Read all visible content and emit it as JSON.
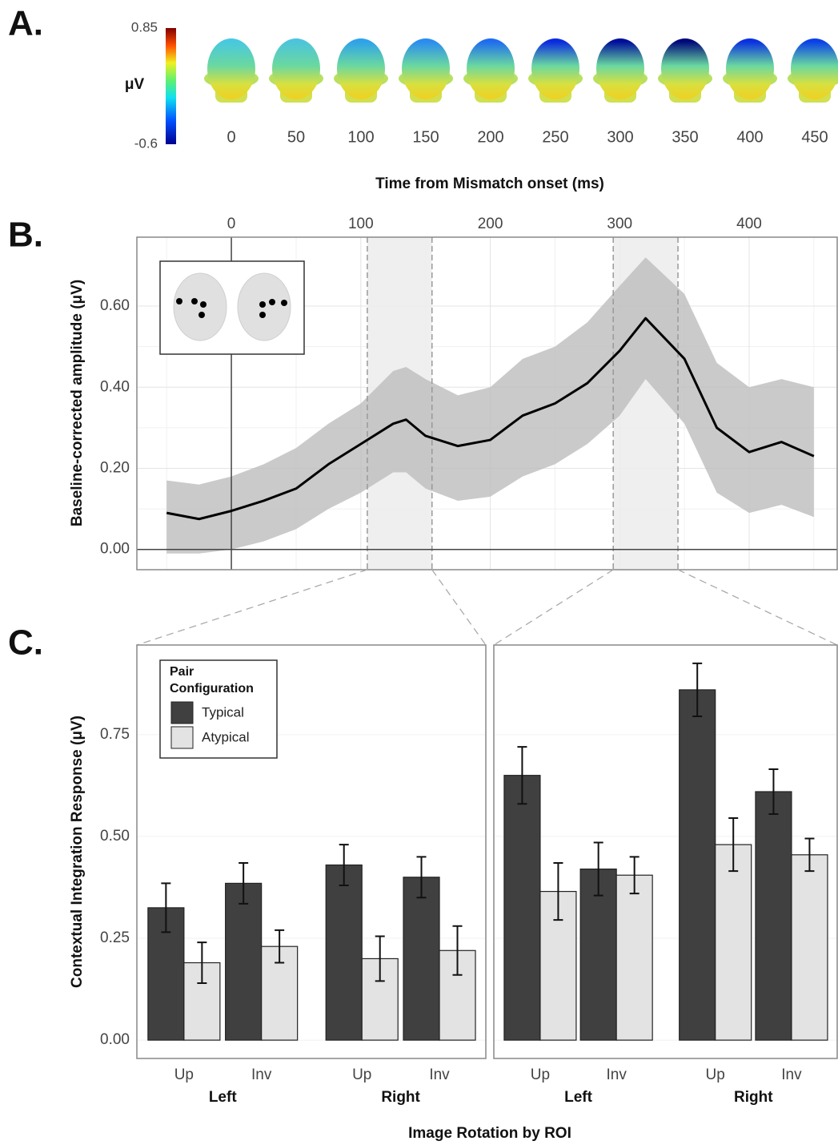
{
  "chart_data": [
    {
      "type": "topomap",
      "panel": "A.",
      "colorbar_label": "μV",
      "clim": [
        -0.6,
        0.85
      ],
      "cticks": [
        0.85,
        -0.6
      ],
      "x": [
        0,
        50,
        100,
        150,
        200,
        250,
        300,
        350,
        400,
        450
      ],
      "colors": [
        "#48c8e0",
        "#4cc4dc",
        "#2ea2ea",
        "#2a8cf0",
        "#1e6cf0",
        "#0a2ae0",
        "#000e9a",
        "#00087a",
        "#0a30e0",
        "#0a40e8"
      ],
      "xlabel": "Time from Mismatch onset (ms)"
    },
    {
      "type": "line",
      "panel": "B.",
      "ylabel": "Baseline-corrected amplitude (μV)",
      "x": [
        -50,
        -25,
        0,
        25,
        50,
        75,
        100,
        125,
        135,
        150,
        175,
        200,
        225,
        250,
        275,
        300,
        320,
        350,
        375,
        400,
        425,
        450
      ],
      "values": [
        0.09,
        0.075,
        0.095,
        0.12,
        0.15,
        0.21,
        0.26,
        0.31,
        0.32,
        0.28,
        0.255,
        0.27,
        0.33,
        0.36,
        0.41,
        0.49,
        0.57,
        0.47,
        0.3,
        0.24,
        0.265,
        0.23
      ],
      "lower": [
        -0.01,
        -0.01,
        0.0,
        0.02,
        0.05,
        0.1,
        0.14,
        0.19,
        0.19,
        0.15,
        0.12,
        0.13,
        0.18,
        0.21,
        0.26,
        0.33,
        0.42,
        0.31,
        0.14,
        0.09,
        0.11,
        0.08
      ],
      "upper": [
        0.17,
        0.16,
        0.18,
        0.21,
        0.25,
        0.31,
        0.36,
        0.44,
        0.45,
        0.42,
        0.38,
        0.4,
        0.47,
        0.5,
        0.56,
        0.65,
        0.72,
        0.63,
        0.46,
        0.4,
        0.42,
        0.4
      ],
      "color": "#000000",
      "band_color": "#bdbdbd",
      "xlim": [
        -73,
        468
      ],
      "ylim": [
        -0.05,
        0.77
      ],
      "xticks": [
        0,
        100,
        200,
        300,
        400
      ],
      "yticks": [
        {
          "value": 0,
          "label": "0.00"
        },
        {
          "value": 0.2,
          "label": "0.20"
        },
        {
          "value": 0.4,
          "label": "0.40"
        },
        {
          "value": 0.6,
          "label": "0.60"
        }
      ],
      "highlights": [
        [
          105,
          155
        ],
        [
          295,
          345
        ]
      ],
      "grid": true
    },
    {
      "type": "bar",
      "panel": "C.",
      "ylabel": "Contextual Integration Response (μV)",
      "xlabel": "Image Rotation by ROI",
      "categories": [
        "Up",
        "Inv",
        "Up",
        "Inv"
      ],
      "groups": [
        "Left",
        "Right"
      ],
      "series": [
        {
          "name": "Typical",
          "color": "#404040",
          "values": [
            0.325,
            0.385,
            0.43,
            0.4
          ],
          "errors": [
            0.06,
            0.05,
            0.05,
            0.05
          ]
        },
        {
          "name": "Atypical",
          "color": "#e3e3e3",
          "values": [
            0.19,
            0.23,
            0.2,
            0.22
          ],
          "errors": [
            0.05,
            0.04,
            0.055,
            0.06
          ]
        }
      ],
      "ylim": [
        -0.045,
        0.97
      ],
      "yticks": [
        {
          "value": 0,
          "label": "0.00"
        },
        {
          "value": 0.25,
          "label": "0.25"
        },
        {
          "value": 0.5,
          "label": "0.50"
        },
        {
          "value": 0.75,
          "label": "0.75"
        }
      ],
      "legend": "top-left",
      "legend_title": "Pair Configuration",
      "grid": true
    },
    {
      "type": "bar",
      "categories": [
        "Up",
        "Inv",
        "Up",
        "Inv"
      ],
      "groups": [
        "Left",
        "Right"
      ],
      "series": [
        {
          "color": "#404040",
          "values": [
            0.65,
            0.42,
            0.86,
            0.61
          ],
          "errors": [
            0.07,
            0.065,
            0.065,
            0.055
          ]
        },
        {
          "color": "#e3e3e3",
          "values": [
            0.365,
            0.405,
            0.48,
            0.455
          ],
          "errors": [
            0.07,
            0.045,
            0.065,
            0.04
          ]
        }
      ],
      "ylim": [
        -0.045,
        0.97
      ],
      "yticks": [
        0,
        0.25,
        0.5,
        0.75
      ],
      "grid": true
    }
  ]
}
